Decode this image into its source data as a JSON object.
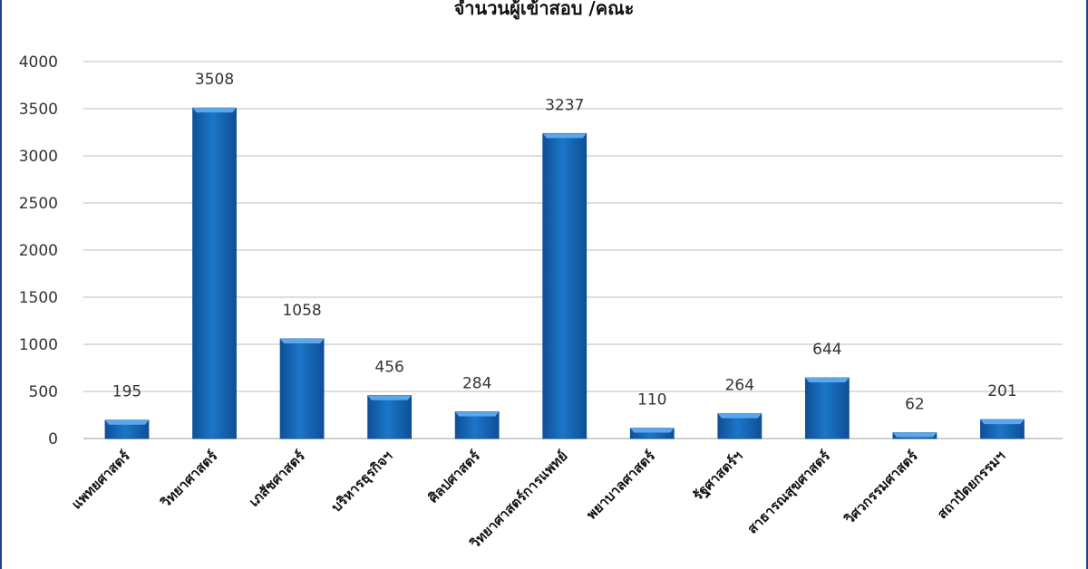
{
  "chart_data": {
    "type": "bar",
    "title": "จำนวนผู้เข้าสอบ /คณะ",
    "xlabel": "",
    "ylabel": "",
    "categories": [
      "แพทยศาสตร์",
      "วิทยาศาสตร์",
      "เภสัชศาสตร์",
      "บริหารธุรกิจฯ",
      "ศิลปศาสตร์",
      "วิทยาศาสตร์การแพทย์",
      "พยาบาลศาสตร์",
      "รัฐศาสตร์ฯ",
      "สาธารณสุขศาสตร์",
      "วิศวกรรมศาสตร์",
      "สถาปัตยกรรมฯ"
    ],
    "values": [
      195,
      3508,
      1058,
      456,
      284,
      3237,
      110,
      264,
      644,
      62,
      201
    ],
    "ylim": [
      0,
      4000
    ],
    "yticks": [
      0,
      500,
      1000,
      1500,
      2000,
      2500,
      3000,
      3500,
      4000
    ],
    "grid": true,
    "legend": "none",
    "colors": {
      "bar": "#1b76c9",
      "bar_light": "#5aa7ee",
      "bar_dark": "#0f4f96",
      "bar_top": "#4a9ae6"
    }
  }
}
